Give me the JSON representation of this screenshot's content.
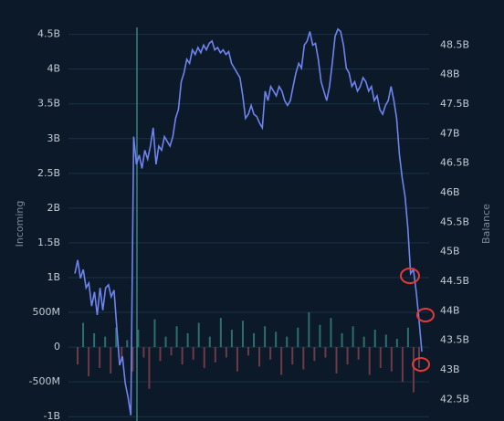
{
  "chart_data": {
    "type": "bar-line",
    "ylim": [
      -1050000000.0,
      4600000000.0
    ],
    "yticks": [
      {
        "value": -1000000000.0,
        "label": "-1B"
      },
      {
        "value": -500000000.0,
        "label": "-500M"
      },
      0,
      {
        "value": 500000000.0,
        "label": "500M"
      },
      {
        "value": 1000000000.0,
        "label": "1B"
      },
      {
        "value": 1500000000.0,
        "label": "1.5B"
      },
      {
        "value": 2000000000.0,
        "label": "2B"
      },
      {
        "value": 2500000000.0,
        "label": "2.5B"
      },
      {
        "value": 3000000000.0,
        "label": "3B"
      },
      {
        "value": 3500000000.0,
        "label": "3.5B"
      },
      {
        "value": 4000000000.0,
        "label": "4B"
      },
      {
        "value": 4500000000.0,
        "label": "4.5B"
      }
    ],
    "y2lim": [
      42150000000.0,
      48800000000.0
    ],
    "y2ticks": [
      {
        "value": 42500000000.0,
        "label": "42.5B"
      },
      {
        "value": 43000000000.0,
        "label": "43B"
      },
      {
        "value": 43500000000.0,
        "label": "43.5B"
      },
      {
        "value": 44000000000.0,
        "label": "44B"
      },
      {
        "value": 44500000000.0,
        "label": "44.5B"
      },
      {
        "value": 45000000000.0,
        "label": "45B"
      },
      {
        "value": 45500000000.0,
        "label": "45.5B"
      },
      {
        "value": 46000000000.0,
        "label": "46B"
      },
      {
        "value": 46500000000.0,
        "label": "46.5B"
      },
      {
        "value": 47000000000.0,
        "label": "47B"
      },
      {
        "value": 47500000000.0,
        "label": "47.5B"
      },
      {
        "value": 48000000000.0,
        "label": "48B"
      },
      {
        "value": 48500000000.0,
        "label": "48.5B"
      }
    ],
    "grid": true,
    "series": [
      {
        "name": "Incoming",
        "type": "bar",
        "color": "#2d6f6b",
        "negative_color": "#6d3a46",
        "values": [
          -250000000.0,
          350000000.0,
          -420000000.0,
          200000000.0,
          -300000000.0,
          150000000.0,
          -380000000.0,
          280000000.0,
          -200000000.0,
          100000000.0,
          -350000000.0,
          250000000.0,
          -150000000.0,
          -600000000.0,
          400000000.0,
          -200000000.0,
          150000000.0,
          -120000000.0,
          300000000.0,
          -250000000.0,
          200000000.0,
          -180000000.0,
          350000000.0,
          -300000000.0,
          150000000.0,
          -220000000.0,
          420000000.0,
          -150000000.0,
          250000000.0,
          -350000000.0,
          380000000.0,
          -120000000.0,
          200000000.0,
          -280000000.0,
          300000000.0,
          -180000000.0,
          220000000.0,
          -400000000.0,
          150000000.0,
          -250000000.0,
          280000000.0,
          -320000000.0,
          500000000.0,
          -200000000.0,
          320000000.0,
          -150000000.0,
          420000000.0,
          -380000000.0,
          200000000.0,
          -250000000.0,
          300000000.0,
          -180000000.0,
          150000000.0,
          -400000000.0,
          250000000.0,
          -300000000.0,
          180000000.0,
          -350000000.0,
          120000000.0,
          -500000000.0,
          280000000.0,
          -650000000.0,
          -300000000.0
        ]
      },
      {
        "name": "Balance",
        "type": "line",
        "axis": "y2",
        "color": "#6f83ee",
        "values": [
          44630000000.0,
          44860000000.0,
          44550000000.0,
          44700000000.0,
          44390000000.0,
          44470000000.0,
          44080000000.0,
          44320000000.0,
          43930000000.0,
          44390000000.0,
          44010000000.0,
          44390000000.0,
          44440000000.0,
          44240000000.0,
          44350000000.0,
          43700000000.0,
          43080000000.0,
          43230000000.0,
          42770000000.0,
          42540000000.0,
          42230000000.0,
          46950000000.0,
          46480000000.0,
          46640000000.0,
          46410000000.0,
          46720000000.0,
          46570000000.0,
          46790000000.0,
          47100000000.0,
          46480000000.0,
          46790000000.0,
          46720000000.0,
          46950000000.0,
          46870000000.0,
          46790000000.0,
          46950000000.0,
          47260000000.0,
          47410000000.0,
          47880000000.0,
          48030000000.0,
          48260000000.0,
          48190000000.0,
          48420000000.0,
          48340000000.0,
          48460000000.0,
          48370000000.0,
          48500000000.0,
          48420000000.0,
          48530000000.0,
          48570000000.0,
          48420000000.0,
          48460000000.0,
          48370000000.0,
          48420000000.0,
          48340000000.0,
          48390000000.0,
          48190000000.0,
          48110000000.0,
          48030000000.0,
          47950000000.0,
          47640000000.0,
          47260000000.0,
          47330000000.0,
          47480000000.0,
          47330000000.0,
          47290000000.0,
          47180000000.0,
          47100000000.0,
          47720000000.0,
          47560000000.0,
          47800000000.0,
          47720000000.0,
          47640000000.0,
          47800000000.0,
          47720000000.0,
          47560000000.0,
          47480000000.0,
          47560000000.0,
          47800000000.0,
          48030000000.0,
          48190000000.0,
          48110000000.0,
          48500000000.0,
          48570000000.0,
          48730000000.0,
          48500000000.0,
          48530000000.0,
          48260000000.0,
          47880000000.0,
          47720000000.0,
          47560000000.0,
          47800000000.0,
          48190000000.0,
          48650000000.0,
          48770000000.0,
          48730000000.0,
          48500000000.0,
          48110000000.0,
          48030000000.0,
          47800000000.0,
          47880000000.0,
          47720000000.0,
          47800000000.0,
          47950000000.0,
          47880000000.0,
          47720000000.0,
          47800000000.0,
          47560000000.0,
          47640000000.0,
          47410000000.0,
          47330000000.0,
          47480000000.0,
          47560000000.0,
          47800000000.0,
          47560000000.0,
          47260000000.0,
          46640000000.0,
          46250000000.0,
          45940000000.0,
          45400000000.0,
          44630000000.0,
          44700000000.0,
          44320000000.0,
          43850000000.0,
          43310000000.0
        ]
      }
    ]
  }
}
